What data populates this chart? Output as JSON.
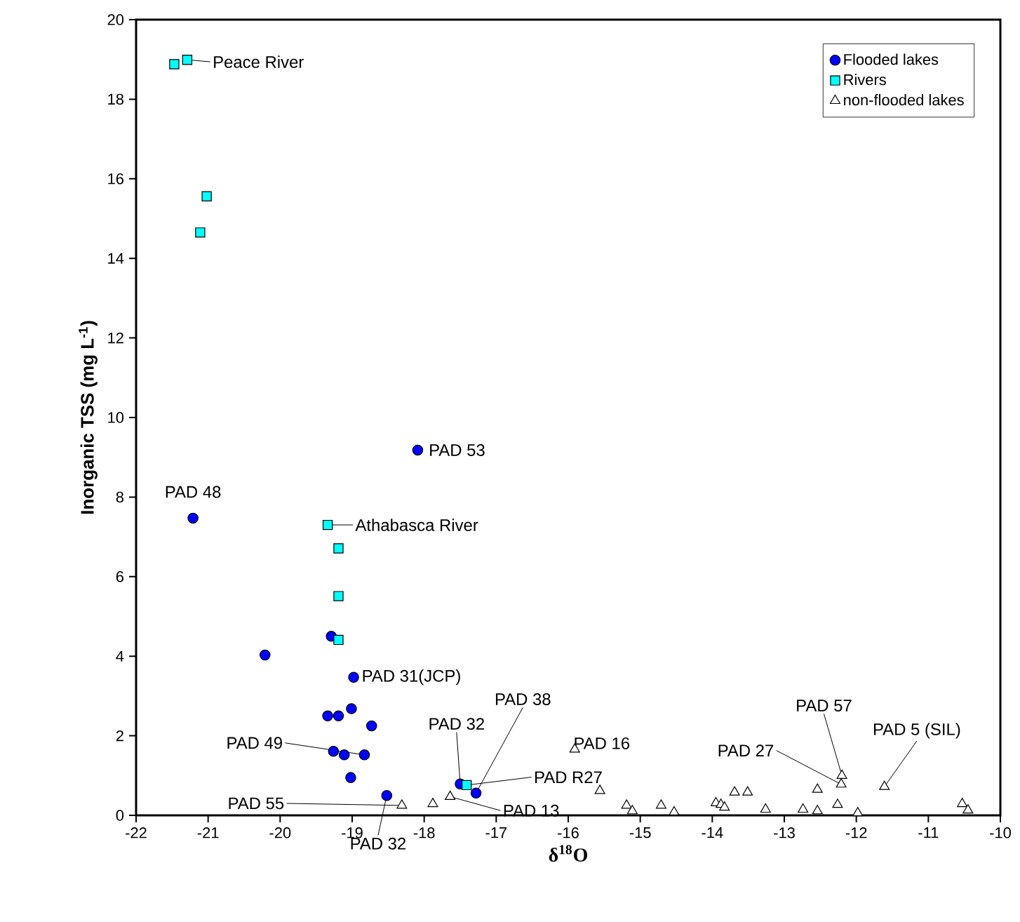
{
  "chart_data": {
    "type": "scatter",
    "xlabel": "δ$^{18}$O",
    "ylabel": "Inorganic TSS (mg L$^{-1}$)",
    "xlim": [
      -22,
      -10
    ],
    "ylim": [
      0,
      20
    ],
    "xticks": [
      -22,
      -21,
      -20,
      -19,
      -18,
      -17,
      -16,
      -15,
      -14,
      -13,
      -12,
      -11,
      -10
    ],
    "yticks": [
      0,
      2,
      4,
      6,
      8,
      10,
      12,
      14,
      16,
      18,
      20
    ],
    "legend": "top right",
    "series": [
      {
        "name": "Flooded lakes",
        "color": "#0000ff",
        "marker": "circle",
        "x": [
          -18.09,
          -21.21,
          -20.21,
          -19.29,
          -18.98,
          -19.34,
          -19.19,
          -19.01,
          -18.73,
          -19.26,
          -19.11,
          -18.83,
          -19.02,
          -18.52,
          -17.5,
          -17.28
        ],
        "values": [
          9.18,
          7.47,
          4.03,
          4.5,
          3.47,
          2.5,
          2.5,
          2.68,
          2.25,
          1.61,
          1.52,
          1.52,
          0.95,
          0.5,
          0.79,
          0.56
        ]
      },
      {
        "name": "Rivers",
        "color": "#00ffff",
        "marker": "square",
        "x": [
          -21.47,
          -21.29,
          -21.02,
          -21.11,
          -19.34,
          -19.19,
          -19.19,
          -19.19,
          -17.41
        ],
        "values": [
          18.88,
          18.99,
          15.56,
          14.65,
          7.3,
          6.71,
          5.51,
          4.41,
          0.76
        ]
      },
      {
        "name": "non-flooded lakes",
        "color": "#ffffff",
        "marker": "triangle",
        "x": [
          -18.31,
          -17.88,
          -17.64,
          -15.91,
          -15.56,
          -15.19,
          -15.11,
          -14.71,
          -14.53,
          -13.95,
          -13.88,
          -13.83,
          -13.69,
          -13.51,
          -13.26,
          -12.74,
          -12.54,
          -12.54,
          -12.26,
          -12.21,
          -12.2,
          -11.98,
          -11.61,
          -10.53,
          -10.45
        ],
        "values": [
          0.25,
          0.29,
          0.47,
          1.66,
          0.62,
          0.25,
          0.11,
          0.25,
          0.08,
          0.31,
          0.27,
          0.2,
          0.58,
          0.58,
          0.15,
          0.15,
          0.11,
          0.65,
          0.27,
          0.78,
          1.0,
          0.06,
          0.72,
          0.29,
          0.13
        ]
      }
    ],
    "annotations": [
      {
        "text": "Peace River",
        "x": -21.29,
        "y": 18.99
      },
      {
        "text": "PAD 53",
        "x": -18.09,
        "y": 9.18
      },
      {
        "text": "PAD 48",
        "x": -21.21,
        "y": 7.47
      },
      {
        "text": "Athabasca River",
        "x": -19.34,
        "y": 7.3
      },
      {
        "text": "PAD 31(JCP)",
        "x": -18.98,
        "y": 3.47
      },
      {
        "text": "PAD 49",
        "x": -18.83,
        "y": 1.52
      },
      {
        "text": "PAD 55",
        "x": -18.31,
        "y": 0.25
      },
      {
        "text": "PAD 32",
        "x": -18.52,
        "y": 0.5
      },
      {
        "text": "PAD 32",
        "x": -17.5,
        "y": 0.79
      },
      {
        "text": "PAD 38",
        "x": -17.28,
        "y": 0.56
      },
      {
        "text": "PAD R27",
        "x": -17.41,
        "y": 0.76
      },
      {
        "text": "PAD 13",
        "x": -17.64,
        "y": 0.47
      },
      {
        "text": "PAD 16",
        "x": -15.91,
        "y": 1.66
      },
      {
        "text": "PAD 57",
        "x": -12.2,
        "y": 1.0
      },
      {
        "text": "PAD 27",
        "x": -12.21,
        "y": 0.78
      },
      {
        "text": "PAD 5 (SIL)",
        "x": -11.61,
        "y": 0.72
      }
    ]
  }
}
